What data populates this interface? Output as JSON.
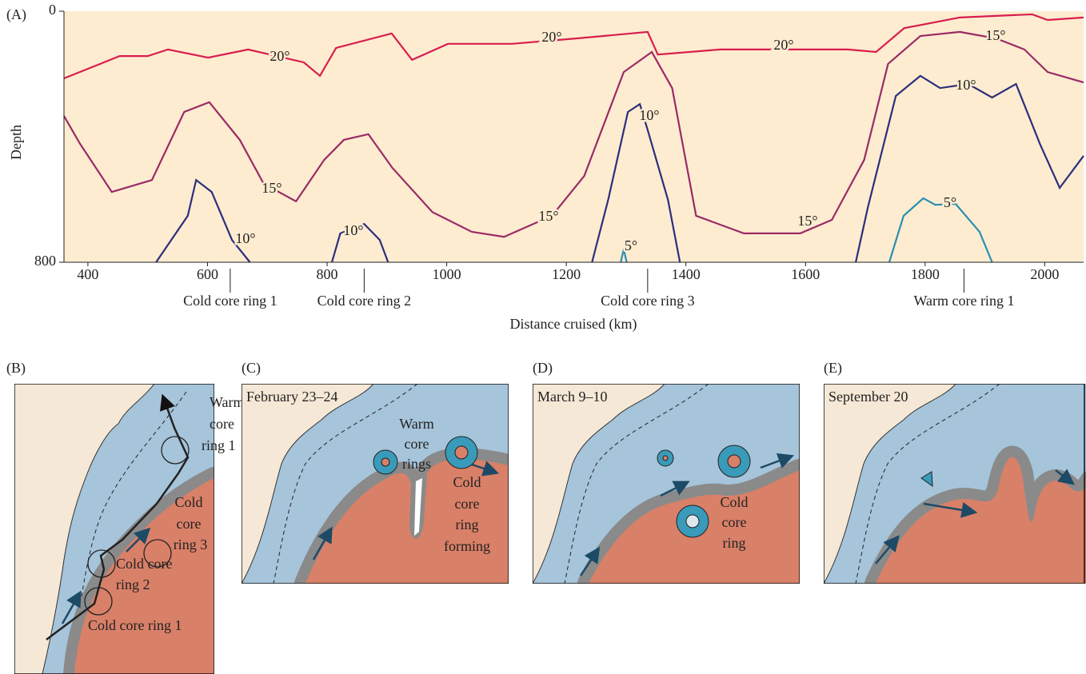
{
  "chart_data": {
    "type": "line",
    "panel_label": "(A)",
    "xlabel": "Distance cruised (km)",
    "ylabel": "Depth",
    "xlim": [
      360,
      2065
    ],
    "ylim": [
      0,
      800
    ],
    "y_inverted": true,
    "xticks": [
      400,
      600,
      800,
      1000,
      1200,
      1400,
      1600,
      1800,
      2000
    ],
    "yticks": [
      0,
      800
    ],
    "background": "#fdecd0",
    "series": [
      {
        "name": "20°",
        "color": "#d81e4e",
        "x": [
          360,
          453,
          500,
          534,
          601,
          668,
          761,
          788,
          815,
          908,
          942,
          1002,
          1109,
          1216,
          1336,
          1353,
          1457,
          1671,
          1718,
          1765,
          1858,
          1979,
          2005,
          2065
        ],
        "values": [
          214,
          143,
          143,
          122,
          148,
          122,
          163,
          206,
          117,
          71,
          155,
          104,
          104,
          87,
          66,
          138,
          122,
          122,
          130,
          54,
          20,
          10,
          28,
          20
        ]
      },
      {
        "name": "15°",
        "color": "#9b2a66",
        "x": [
          360,
          387,
          440,
          507,
          561,
          603,
          654,
          694,
          748,
          795,
          828,
          869,
          909,
          976,
          1042,
          1096,
          1176,
          1230,
          1296,
          1343,
          1377,
          1417,
          1497,
          1591,
          1644,
          1698,
          1738,
          1792,
          1858,
          1919,
          1966,
          2005,
          2065
        ],
        "values": [
          334,
          423,
          576,
          538,
          321,
          290,
          410,
          550,
          606,
          474,
          410,
          392,
          499,
          640,
          703,
          719,
          652,
          525,
          194,
          130,
          245,
          652,
          708,
          708,
          665,
          474,
          168,
          79,
          66,
          87,
          122,
          194,
          227
        ]
      },
      {
        "name": "10°",
        "color": "#2c2e7e",
        "x": [
          514,
          567,
          581,
          607,
          641,
          671,
          null,
          808,
          822,
          862,
          888,
          902,
          null,
          1243,
          1270,
          1303,
          1323,
          1337,
          1370,
          1390,
          null,
          1684,
          1704,
          1751,
          1792,
          1825,
          1872,
          1912,
          1952,
          1992,
          2025,
          2065
        ],
        "values": [
          800,
          652,
          538,
          576,
          729,
          800,
          null,
          800,
          708,
          678,
          729,
          800,
          null,
          800,
          601,
          321,
          296,
          385,
          601,
          800,
          null,
          800,
          627,
          270,
          206,
          245,
          232,
          275,
          232,
          423,
          563,
          461
        ]
      },
      {
        "name": "5°",
        "color": "#2a8fb0",
        "x": [
          1291,
          1296,
          1301,
          null,
          1740,
          1764,
          1797,
          1817,
          1851,
          1891,
          1912
        ],
        "values": [
          800,
          759,
          800,
          null,
          800,
          652,
          596,
          617,
          614,
          703,
          800
        ]
      }
    ],
    "annotations": [
      {
        "text": "Cold core ring 1",
        "x": 638
      },
      {
        "text": "Cold core ring 2",
        "x": 862
      },
      {
        "text": "Cold core ring 3",
        "x": 1336
      },
      {
        "text": "Warm core ring 1",
        "x": 1865
      }
    ]
  },
  "panels": [
    {
      "label": "(B)",
      "notes": [
        [
          "Warm",
          "core",
          "ring 1"
        ],
        [
          "Cold",
          "core",
          "ring 3"
        ],
        [
          "Cold core",
          "ring 2"
        ],
        [
          "Cold core ring 1"
        ]
      ]
    },
    {
      "label": "(C)",
      "date": "February 23–24",
      "notes": [
        [
          "Warm",
          "core",
          "rings"
        ],
        [
          "Cold",
          "core",
          "ring",
          "forming"
        ]
      ]
    },
    {
      "label": "(D)",
      "date": "March 9–10",
      "notes": [
        [
          "Cold",
          "core",
          "ring"
        ]
      ]
    },
    {
      "label": "(E)",
      "date": "September 20"
    }
  ]
}
